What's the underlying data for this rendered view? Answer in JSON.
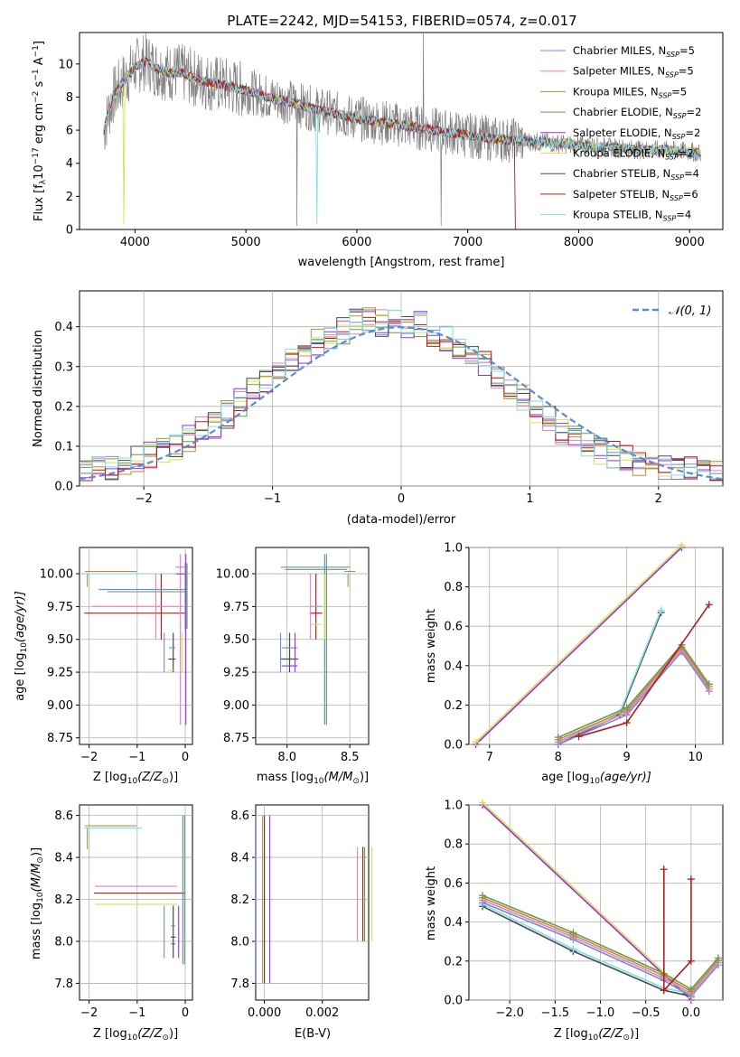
{
  "figure_title": "PLATE=2242, MJD=54153, FIBERID=0574, z=0.017",
  "series": [
    {
      "label": "Chabrier MILES, N",
      "sub": "SSP",
      "suffix": "=5",
      "color": "#6a8fd8"
    },
    {
      "label": "Salpeter MILES, N",
      "sub": "SSP",
      "suffix": "=5",
      "color": "#e87fbf"
    },
    {
      "label": "Kroupa MILES, N",
      "sub": "SSP",
      "suffix": "=5",
      "color": "#c08a3a"
    },
    {
      "label": "Chabrier ELODIE, N",
      "sub": "SSP",
      "suffix": "=2",
      "color": "#6b9a4f"
    },
    {
      "label": "Salpeter ELODIE, N",
      "sub": "SSP",
      "suffix": "=2",
      "color": "#9a32cd"
    },
    {
      "label": "Kroupa ELODIE, N",
      "sub": "SSP",
      "suffix": "=2",
      "color": "#d4e157"
    },
    {
      "label": "Chabrier STELIB, N",
      "sub": "SSP",
      "suffix": "=4",
      "color": "#4a4a4a"
    },
    {
      "label": "Salpeter STELIB, N",
      "sub": "SSP",
      "suffix": "=6",
      "color": "#b71c1c"
    },
    {
      "label": "Kroupa STELIB, N",
      "sub": "SSP",
      "suffix": "=4",
      "color": "#80deea"
    }
  ],
  "labels": {
    "spec_x": "wavelength [Angstrom, rest frame]",
    "spec_y_main": "Flux [f",
    "spec_y_sub": "λ",
    "spec_y_rest": "10",
    "spec_y_sup": "−17",
    "spec_y_units": " erg cm",
    "spec_y_sup2": "−2",
    "spec_y_s": " s",
    "spec_y_sup3": "−1",
    "spec_y_A": " A",
    "spec_y_sup4": "−1",
    "spec_y_close": "]",
    "hist_x": "(data-model)/error",
    "hist_y": "Normed distribution",
    "hist_legend": "𝒩(0, 1)",
    "p3_x": "Z [log",
    "p3_x_sub": "10",
    "p3_x_rest": "(Z/Z",
    "p3_x_sun": "⊙",
    "p3_x_close": ")]",
    "p3_y": "age  [log",
    "p3_y_sub": "10",
    "p3_y_rest": "(age/yr)]",
    "p4_x": "mass [log",
    "p4_x_sub": "10",
    "p4_x_rest": "(M/M",
    "p4_x_sun": "⊙",
    "p4_x_close": ")]",
    "p5_x": "age  [log",
    "p5_x_sub": "10",
    "p5_x_rest": "(age/yr)]",
    "p5_y": "mass weight",
    "p6_y": "mass [log",
    "p6_y_sub": "10",
    "p6_y_rest": "(M/M",
    "p6_y_sun": "⊙",
    "p6_y_close": ")]",
    "p7_x": "E(B-V)",
    "p8_y": "mass weight"
  },
  "chart_data": [
    {
      "type": "line",
      "name": "spectrum",
      "xlim": [
        3500,
        9300
      ],
      "ylim": [
        0,
        11.9
      ],
      "xticks": [
        4000,
        5000,
        6000,
        7000,
        8000,
        9000
      ],
      "yticks": [
        0,
        2,
        4,
        6,
        8,
        10
      ],
      "x": [
        3720,
        3800,
        3900,
        4000,
        4100,
        4200,
        4300,
        4400,
        4600,
        4800,
        5000,
        5200,
        5400,
        5600,
        5800,
        6000,
        6200,
        6400,
        6600,
        6800,
        7000,
        7200,
        7400,
        7600,
        7800,
        8000,
        8200,
        8400,
        8600,
        8800,
        9000,
        9100
      ],
      "y": [
        6.0,
        8.0,
        9.0,
        9.8,
        10.2,
        9.7,
        9.5,
        9.5,
        9.0,
        8.7,
        8.4,
        8.0,
        7.7,
        7.3,
        7.0,
        6.7,
        6.5,
        6.3,
        6.1,
        5.9,
        5.7,
        5.5,
        5.4,
        5.3,
        5.2,
        5.1,
        5.0,
        4.9,
        4.8,
        4.8,
        4.7,
        4.6
      ],
      "grid": false,
      "legend": "top-right"
    },
    {
      "type": "line",
      "name": "residual histogram",
      "xlim": [
        -2.5,
        2.5
      ],
      "ylim": [
        0,
        0.49
      ],
      "xticks": [
        -2,
        -1,
        0,
        1,
        2
      ],
      "yticks": [
        0.0,
        0.1,
        0.2,
        0.3,
        0.4
      ],
      "bins": [
        -2.5,
        -2.4,
        -2.3,
        -2.2,
        -2.1,
        -2.0,
        -1.9,
        -1.8,
        -1.7,
        -1.6,
        -1.5,
        -1.4,
        -1.3,
        -1.2,
        -1.1,
        -1.0,
        -0.9,
        -0.8,
        -0.7,
        -0.6,
        -0.5,
        -0.4,
        -0.3,
        -0.2,
        -0.1,
        0.0,
        0.1,
        0.2,
        0.3,
        0.4,
        0.5,
        0.6,
        0.7,
        0.8,
        0.9,
        1.0,
        1.1,
        1.2,
        1.3,
        1.4,
        1.5,
        1.6,
        1.7,
        1.8,
        1.9,
        2.0,
        2.1,
        2.2,
        2.3,
        2.4
      ],
      "values": [
        0.03,
        0.04,
        0.05,
        0.06,
        0.07,
        0.08,
        0.09,
        0.1,
        0.12,
        0.14,
        0.15,
        0.18,
        0.21,
        0.24,
        0.26,
        0.29,
        0.31,
        0.33,
        0.36,
        0.38,
        0.39,
        0.41,
        0.42,
        0.41,
        0.42,
        0.4,
        0.41,
        0.38,
        0.37,
        0.35,
        0.33,
        0.31,
        0.28,
        0.25,
        0.22,
        0.19,
        0.17,
        0.14,
        0.12,
        0.1,
        0.09,
        0.08,
        0.07,
        0.06,
        0.05,
        0.05,
        0.04,
        0.04,
        0.03,
        0.03
      ],
      "grid": true,
      "legend": "top-right"
    },
    {
      "type": "scatter",
      "name": "age vs Z",
      "xlim": [
        -2.2,
        0.15
      ],
      "ylim": [
        8.7,
        10.2
      ],
      "xticks": [
        -2,
        -1,
        0
      ],
      "yticks": [
        8.75,
        9.0,
        9.25,
        9.5,
        9.75,
        10.0
      ],
      "points": [
        {
          "x": -0.25,
          "y": 9.35,
          "xerr": [
            0.1,
            0.05
          ],
          "yerr": [
            0.1,
            0.2
          ]
        },
        {
          "x": -0.5,
          "y": 9.7,
          "xerr": [
            1.6,
            0.5
          ],
          "yerr": [
            0.2,
            0.3
          ]
        },
        {
          "x": -2.0,
          "y": 10.0,
          "xerr": [
            0.1,
            1.1
          ],
          "yerr": [
            0.1,
            0.0
          ]
        },
        {
          "x": 0.0,
          "y": 9.88,
          "xerr": [
            1.8,
            0.0
          ],
          "yerr": [
            0.3,
            0.2
          ]
        },
        {
          "x": -0.1,
          "y": 10.05,
          "xerr": [
            0.1,
            0.1
          ],
          "yerr": [
            1.2,
            0.1
          ]
        }
      ],
      "grid": true
    },
    {
      "type": "scatter",
      "name": "age vs mass",
      "xlim": [
        7.75,
        8.65
      ],
      "ylim": [
        8.7,
        10.2
      ],
      "xticks": [
        8.0,
        8.5
      ],
      "yticks": [
        8.75,
        9.0,
        9.25,
        9.5,
        9.75,
        10.0
      ],
      "points": [
        {
          "x": 8.02,
          "y": 9.35,
          "xerr": [
            0.07,
            0.07
          ],
          "yerr": [
            0.1,
            0.2
          ]
        },
        {
          "x": 8.23,
          "y": 9.7,
          "xerr": [
            0.05,
            0.05
          ],
          "yerr": [
            0.2,
            0.3
          ]
        },
        {
          "x": 8.5,
          "y": 10.0,
          "xerr": [
            0.05,
            0.05
          ],
          "yerr": [
            0.1,
            0.0
          ]
        },
        {
          "x": 8.3,
          "y": 10.05,
          "xerr": [
            0.35,
            0.2
          ],
          "yerr": [
            1.2,
            0.1
          ]
        }
      ],
      "grid": true
    },
    {
      "type": "line",
      "name": "mass weight vs age",
      "xlim": [
        6.7,
        10.4
      ],
      "ylim": [
        0,
        1.0
      ],
      "xticks": [
        7,
        8,
        9,
        10
      ],
      "yticks": [
        0.0,
        0.2,
        0.4,
        0.6,
        0.8,
        1.0
      ],
      "series": [
        {
          "x": [
            6.8,
            9.8
          ],
          "y": [
            0.0,
            1.0
          ]
        },
        {
          "x": [
            8.0,
            8.9,
            9.5
          ],
          "y": [
            0.0,
            0.15,
            0.67
          ]
        },
        {
          "x": [
            8.0,
            9.0,
            9.8,
            10.2
          ],
          "y": [
            0.0,
            0.15,
            0.47,
            0.27
          ]
        },
        {
          "x": [
            8.3,
            9.0,
            10.2
          ],
          "y": [
            0.04,
            0.11,
            0.71
          ]
        }
      ],
      "grid": true
    },
    {
      "type": "scatter",
      "name": "mass vs Z",
      "xlim": [
        -2.2,
        0.15
      ],
      "ylim": [
        7.72,
        8.65
      ],
      "xticks": [
        -2,
        -1,
        0
      ],
      "yticks": [
        7.8,
        8.0,
        8.2,
        8.4,
        8.6
      ],
      "points": [
        {
          "x": -0.25,
          "y": 8.02,
          "xerr": [
            0.05,
            0.05
          ],
          "yerr": [
            0.1,
            0.15
          ]
        },
        {
          "x": -1.7,
          "y": 8.23,
          "xerr": [
            0.2,
            1.7
          ],
          "yerr": [
            0.0,
            0.0
          ]
        },
        {
          "x": -2.0,
          "y": 8.54,
          "xerr": [
            0.1,
            1.1
          ],
          "yerr": [
            0.1,
            0.0
          ]
        },
        {
          "x": -0.05,
          "y": 8.34,
          "xerr": [
            0.0,
            0.0
          ],
          "yerr": [
            0.45,
            0.26
          ]
        }
      ],
      "grid": true
    },
    {
      "type": "scatter",
      "name": "mass vs E(B-V)",
      "xlim": [
        -0.0003,
        0.0036
      ],
      "ylim": [
        7.72,
        8.65
      ],
      "xticks": [
        0.0,
        0.002
      ],
      "yticks": [
        7.8,
        8.0,
        8.2,
        8.4,
        8.6
      ],
      "points": [
        {
          "x": 0.0,
          "y": 8.3,
          "xerr": [
            0,
            0
          ],
          "yerr": [
            0.5,
            0.3
          ]
        },
        {
          "x": 0.0034,
          "y": 8.2,
          "xerr": [
            0,
            0
          ],
          "yerr": [
            0.2,
            0.25
          ]
        }
      ],
      "grid": true
    },
    {
      "type": "line",
      "name": "mass weight vs Z",
      "xlim": [
        -2.45,
        0.35
      ],
      "ylim": [
        0,
        1.0
      ],
      "xticks": [
        -2.0,
        -1.5,
        -1.0,
        -0.5,
        0.0
      ],
      "yticks": [
        0.0,
        0.2,
        0.4,
        0.6,
        0.8,
        1.0
      ],
      "series": [
        {
          "x": [
            -2.3,
            0.0
          ],
          "y": [
            1.0,
            0.0
          ]
        },
        {
          "x": [
            -2.3,
            -1.3,
            -0.3,
            0.0
          ],
          "y": [
            0.48,
            0.25,
            0.05,
            0.02
          ]
        },
        {
          "x": [
            -2.3,
            -1.3,
            -0.3,
            0.0,
            0.3
          ],
          "y": [
            0.5,
            0.31,
            0.1,
            0.02,
            0.18
          ]
        },
        {
          "x": [
            -0.3,
            -0.3,
            0.0,
            0.0
          ],
          "y": [
            0.67,
            0.05,
            0.2,
            0.62
          ]
        }
      ],
      "grid": true
    }
  ]
}
